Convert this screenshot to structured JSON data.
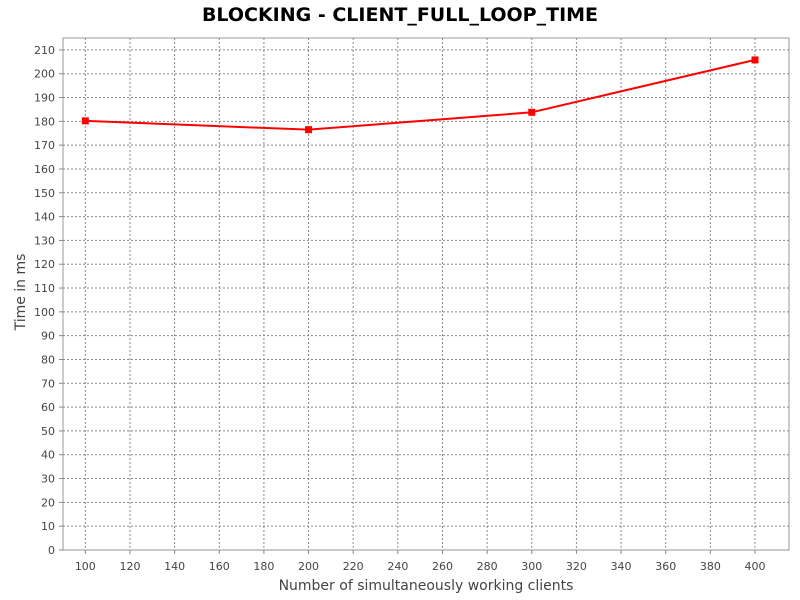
{
  "chart_data": {
    "type": "line",
    "title": "BLOCKING - CLIENT_FULL_LOOP_TIME",
    "xlabel": "Number of simultaneously working clients",
    "ylabel": "Time in ms",
    "xlim": [
      90,
      400
    ],
    "ylim": [
      0,
      210
    ],
    "x_ticks": [
      "100",
      "120",
      "140",
      "160",
      "180",
      "200",
      "220",
      "240",
      "260",
      "280",
      "300",
      "320",
      "340",
      "360",
      "380",
      "400"
    ],
    "y_ticks": [
      "0",
      "10",
      "20",
      "30",
      "40",
      "50",
      "60",
      "70",
      "80",
      "90",
      "100",
      "110",
      "120",
      "130",
      "140",
      "150",
      "160",
      "170",
      "180",
      "190",
      "200",
      "210"
    ],
    "grid": true,
    "series": [
      {
        "color": "#ff0000",
        "x": [
          100,
          200,
          300,
          400
        ],
        "y": [
          180.2,
          176.5,
          183.8,
          205.8
        ]
      }
    ]
  }
}
